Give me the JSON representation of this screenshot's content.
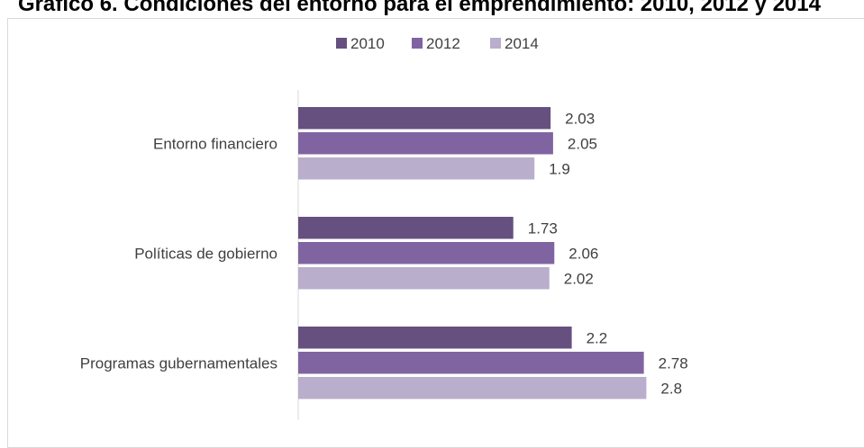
{
  "chart_data": {
    "type": "bar",
    "orientation": "horizontal",
    "title": "Gráfico 6. Condiciones del entorno para el emprendimiento: 2010, 2012 y 2014",
    "categories": [
      "Entorno financiero",
      "Políticas de gobierno",
      "Programas gubernamentales"
    ],
    "series": [
      {
        "name": "2010",
        "values": [
          2.03,
          1.73,
          2.2
        ],
        "labels": [
          "2.03",
          "1.73",
          "2.2"
        ],
        "color": "#66507f"
      },
      {
        "name": "2012",
        "values": [
          2.05,
          2.06,
          2.78
        ],
        "labels": [
          "2.05",
          "2.06",
          "2.78"
        ],
        "color": "#8064a2"
      },
      {
        "name": "2014",
        "values": [
          1.9,
          2.02,
          2.8
        ],
        "labels": [
          "1.9",
          "2.02",
          "2.8"
        ],
        "color": "#b9aecb"
      }
    ],
    "xlim": [
      0,
      3
    ],
    "legend_position": "top",
    "grid": false
  }
}
